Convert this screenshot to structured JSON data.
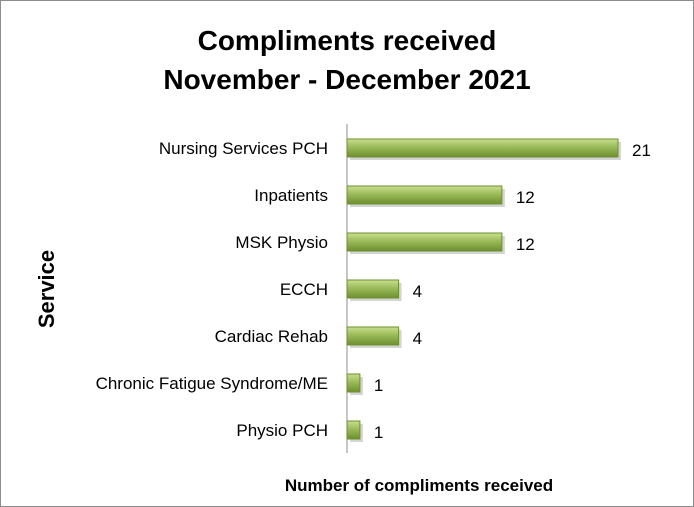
{
  "chart_data": {
    "type": "bar",
    "orientation": "horizontal",
    "title": "Compliments received",
    "subtitle": "November - December 2021",
    "xlabel": "Number of compliments received",
    "ylabel": "Service",
    "categories": [
      "Nursing Services PCH",
      "Inpatients",
      "MSK Physio",
      "ECCH",
      "Cardiac Rehab",
      "Chronic Fatigue Syndrome/ME",
      "Physio PCH"
    ],
    "values": [
      21,
      12,
      12,
      4,
      4,
      1,
      1
    ],
    "xlim": [
      0,
      21
    ],
    "grid": false,
    "legend": "none",
    "bar_color": "#9bbb59",
    "bar_color_dark": "#6e8f2f",
    "bar_color_light": "#c9df8f",
    "axis_color": "#8c8c8c"
  }
}
